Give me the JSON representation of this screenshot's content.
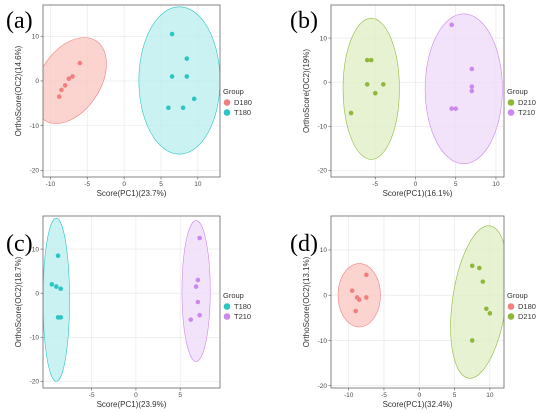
{
  "chart_data": [
    {
      "type": "scatter",
      "label": "(a)",
      "xlabel": "Score(PC1)(23.7%)",
      "ylabel": "OrthoScore(OC2)(14.6%)",
      "xlim": [
        -11,
        13
      ],
      "ylim": [
        -21.5,
        17
      ],
      "xticks": [
        -10,
        -5,
        0,
        5,
        10
      ],
      "yticks": [
        -20,
        -10,
        0,
        10
      ],
      "grid": true,
      "legend": {
        "title": "Group",
        "placement": "right"
      },
      "series": [
        {
          "name": "D180",
          "color": "#f08080",
          "fill": "#f9c5c0",
          "points": [
            [
              -6,
              4
            ],
            [
              -7,
              1
            ],
            [
              -7.5,
              0.5
            ],
            [
              -8,
              -1
            ],
            [
              -8.5,
              -2
            ],
            [
              -8.8,
              -3.5
            ]
          ],
          "ellipse": {
            "cx": -7.3,
            "cy": 0.1,
            "rx": 4.1,
            "ry": 10.6,
            "angle": 33
          }
        },
        {
          "name": "T180",
          "color": "#2cc4c4",
          "fill": "#b8eeee",
          "points": [
            [
              6.5,
              10.5
            ],
            [
              8.5,
              5
            ],
            [
              6.5,
              1
            ],
            [
              8.5,
              1
            ],
            [
              9.5,
              -4
            ],
            [
              6,
              -6
            ],
            [
              8,
              -6
            ]
          ],
          "ellipse": {
            "cx": 7.5,
            "cy": 0.1,
            "rx": 5.5,
            "ry": 16.5,
            "angle": 0
          }
        }
      ]
    },
    {
      "type": "scatter",
      "label": "(b)",
      "xlabel": "Score(PC1)(16.1%)",
      "ylabel": "OrthoScore(OC2)(19%)",
      "xlim": [
        -10.5,
        11
      ],
      "ylim": [
        -21.5,
        17.5
      ],
      "xticks": [
        -5,
        0,
        5,
        10
      ],
      "yticks": [
        -20,
        -10,
        0,
        10
      ],
      "grid": true,
      "legend": {
        "title": "Group",
        "placement": "right"
      },
      "series": [
        {
          "name": "D210",
          "color": "#8fb83a",
          "fill": "#dfedc4",
          "points": [
            [
              -6,
              5
            ],
            [
              -5.5,
              5
            ],
            [
              -4,
              -0.5
            ],
            [
              -6,
              -0.5
            ],
            [
              -5,
              -2.5
            ],
            [
              -8,
              -7
            ]
          ],
          "ellipse": {
            "cx": -5.5,
            "cy": -1.5,
            "rx": 3.5,
            "ry": 16,
            "angle": 0
          }
        },
        {
          "name": "T210",
          "color": "#cc88ee",
          "fill": "#edd9f9",
          "points": [
            [
              4.5,
              13
            ],
            [
              7,
              3
            ],
            [
              7,
              -1
            ],
            [
              7,
              -2
            ],
            [
              4.5,
              -6
            ],
            [
              5,
              -6
            ]
          ],
          "ellipse": {
            "cx": 6,
            "cy": -1.5,
            "rx": 4.8,
            "ry": 17,
            "angle": 0
          }
        }
      ]
    },
    {
      "type": "scatter",
      "label": "(c)",
      "xlabel": "Score(PC1)(23.9%)",
      "ylabel": "OrthoScore(OC2)(18.7%)",
      "xlim": [
        -10.5,
        9.5
      ],
      "ylim": [
        -21.5,
        17.5
      ],
      "xticks": [
        -5,
        0,
        5
      ],
      "yticks": [
        -20,
        -10,
        0,
        10
      ],
      "grid": true,
      "legend": {
        "title": "Group",
        "placement": "right"
      },
      "series": [
        {
          "name": "T180",
          "color": "#2cc4c4",
          "fill": "#b8eeee",
          "points": [
            [
              -8.8,
              8.5
            ],
            [
              -9.5,
              2
            ],
            [
              -9,
              1.5
            ],
            [
              -8.5,
              1
            ],
            [
              -8.5,
              -5.5
            ],
            [
              -8.8,
              -5.5
            ]
          ],
          "ellipse": {
            "cx": -9,
            "cy": -1.5,
            "rx": 1.5,
            "ry": 18.5,
            "angle": 0
          }
        },
        {
          "name": "T210",
          "color": "#cc88ee",
          "fill": "#edd9f9",
          "points": [
            [
              7.2,
              12.5
            ],
            [
              7,
              3
            ],
            [
              6.8,
              1.5
            ],
            [
              7,
              -2
            ],
            [
              7.2,
              -5
            ],
            [
              6.2,
              -6
            ]
          ],
          "ellipse": {
            "cx": 6.8,
            "cy": 0.5,
            "rx": 1.6,
            "ry": 16,
            "angle": 0
          }
        }
      ]
    },
    {
      "type": "scatter",
      "label": "(d)",
      "xlabel": "Score(PC1)(32.4%)",
      "ylabel": "OrthoScore(OC2)(13.1%)",
      "xlim": [
        -12.5,
        12
      ],
      "ylim": [
        -20.5,
        17.5
      ],
      "xticks": [
        -10,
        -5,
        0,
        5,
        10
      ],
      "yticks": [
        -20,
        -10,
        0,
        10
      ],
      "grid": true,
      "legend": {
        "title": "Group",
        "placement": "right"
      },
      "series": [
        {
          "name": "D180",
          "color": "#f08080",
          "fill": "#f9c5c0",
          "points": [
            [
              -7.5,
              4.5
            ],
            [
              -9.5,
              1
            ],
            [
              -8.8,
              -0.5
            ],
            [
              -8.5,
              -1
            ],
            [
              -7.5,
              -0.5
            ],
            [
              -9,
              -3.5
            ]
          ],
          "ellipse": {
            "cx": -8.5,
            "cy": 0,
            "rx": 3,
            "ry": 7,
            "angle": 0
          }
        },
        {
          "name": "D210",
          "color": "#8fb83a",
          "fill": "#dfedc4",
          "points": [
            [
              7.5,
              6.5
            ],
            [
              8.5,
              6
            ],
            [
              9,
              3
            ],
            [
              9.5,
              -3
            ],
            [
              10,
              -4
            ],
            [
              7.5,
              -10
            ]
          ],
          "ellipse": {
            "cx": 8.5,
            "cy": -1.5,
            "rx": 3.8,
            "ry": 17,
            "angle": 8
          }
        }
      ]
    }
  ]
}
